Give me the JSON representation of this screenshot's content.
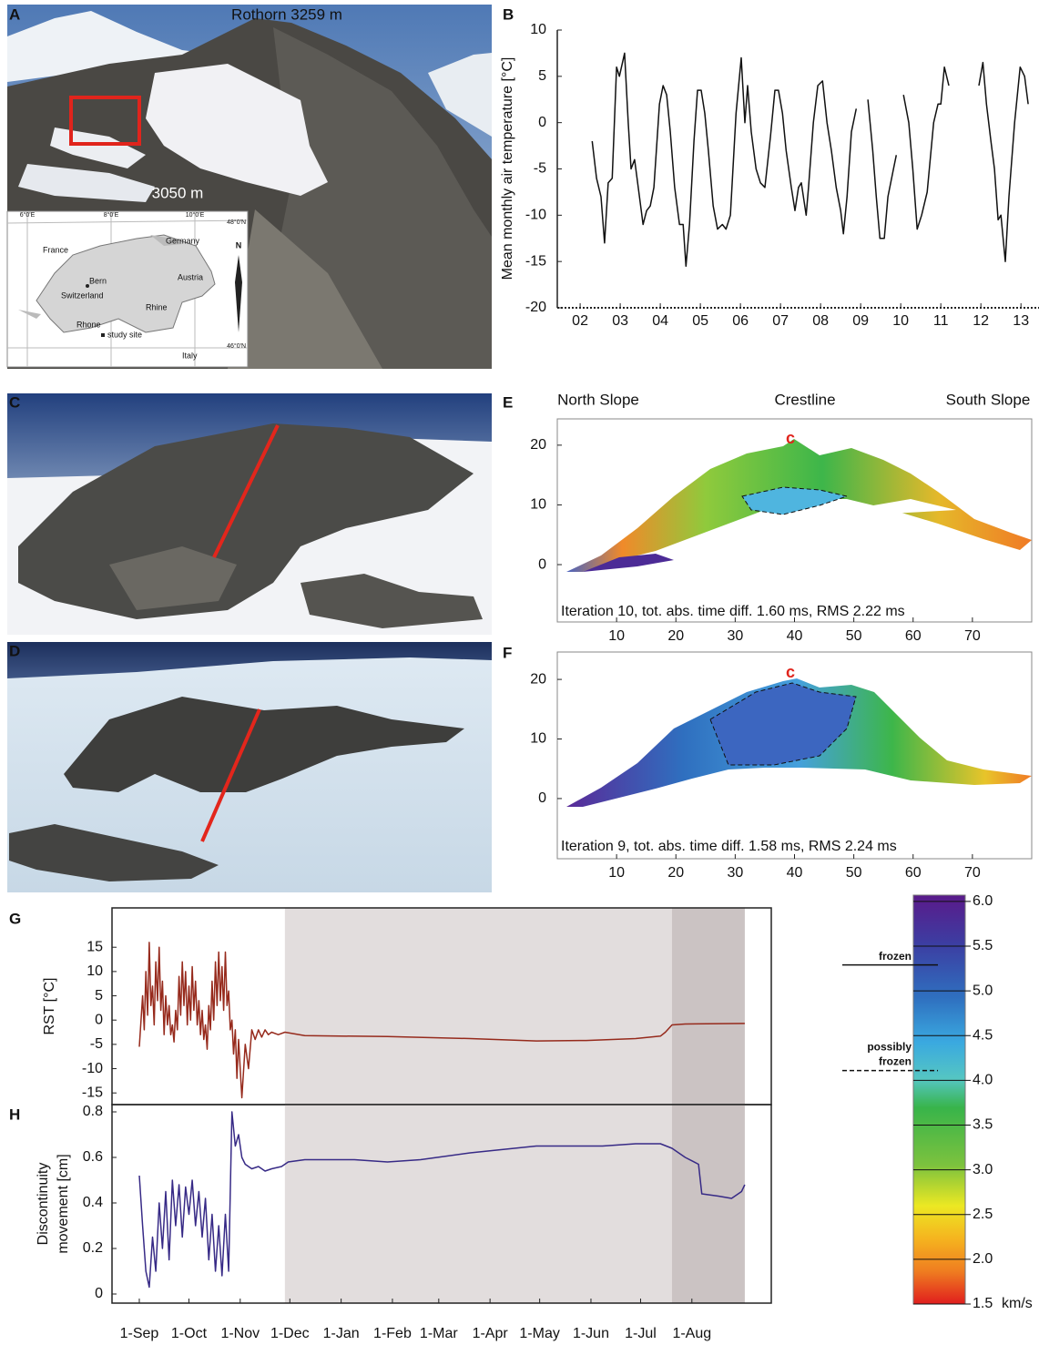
{
  "panel_labels": [
    "A",
    "B",
    "C",
    "D",
    "E",
    "F",
    "G",
    "H"
  ],
  "photo_a": {
    "peak": "Rothorn 3259 m",
    "elevation": "3050 m",
    "map": {
      "labels": [
        "France",
        "Germany",
        "Bern",
        "Austria",
        "Switzerland",
        "Rhone",
        "Rhine",
        "study site",
        "Italy"
      ],
      "north": "N",
      "lon_ticks": [
        "6°0'E",
        "8°0'E",
        "10°0'E"
      ],
      "lat_ticks": [
        "48°0'N",
        "46°0'N"
      ]
    }
  },
  "chart_data": [
    {
      "type": "line",
      "ylabel": "Mean monthly air temperature [°C]",
      "x": [
        2.3,
        2.41,
        2.52,
        2.61,
        2.7,
        2.8,
        2.91,
        2.98,
        3.11,
        3.2,
        3.27,
        3.36,
        3.45,
        3.57,
        3.66,
        3.75,
        3.84,
        3.98,
        4.07,
        4.16,
        4.25,
        4.36,
        4.48,
        4.57,
        4.64,
        4.73,
        4.84,
        4.93,
        5.02,
        5.11,
        5.2,
        5.32,
        5.43,
        5.55,
        5.64,
        5.75,
        5.89,
        6.02,
        6.11,
        6.18,
        6.27,
        6.39,
        6.5,
        6.61,
        6.75,
        6.86,
        6.95,
        7.05,
        7.14,
        7.27,
        7.36,
        7.45,
        7.52,
        7.64,
        7.7,
        7.82,
        7.93,
        8.05,
        8.16,
        8.27,
        8.39,
        8.5,
        8.57,
        8.66,
        8.77,
        8.89,
        9.0,
        9.18,
        9.3,
        9.39,
        9.48,
        9.59,
        9.68,
        9.82,
        9.89,
        9.95,
        10.07,
        10.2,
        10.3,
        10.41,
        10.52,
        10.66,
        10.82,
        10.93,
        11.0,
        11.09,
        11.2,
        11.5,
        11.95,
        12.05,
        12.14,
        12.25,
        12.34,
        12.43,
        12.5,
        12.61,
        12.7,
        12.84,
        12.98,
        13.09,
        13.18
      ],
      "series": [
        {
          "color": "#111111",
          "values": [
            -2,
            -6,
            -8,
            -13,
            -6.5,
            -6,
            6,
            5,
            7.5,
            0,
            -5,
            -4,
            -7,
            -11,
            -9.5,
            -9,
            -7,
            2,
            4,
            3,
            -1,
            -7,
            -11,
            -11,
            -15.5,
            -11,
            -2,
            3.5,
            3.5,
            1,
            -3,
            -9,
            -11.5,
            -11,
            -11.5,
            -10,
            1,
            7,
            0,
            4,
            -1,
            -5,
            -6.5,
            -7,
            -1.5,
            3.5,
            3.5,
            1,
            -3,
            -7,
            -9.5,
            -7,
            -6.5,
            -10,
            -7,
            0,
            4,
            4.5,
            0,
            -3,
            -7,
            -9.5,
            -12,
            -8,
            -1,
            1.5,
            null,
            2.5,
            -3,
            -8,
            -12.5,
            -12.5,
            -8,
            -5,
            -3.5,
            null,
            3,
            0,
            -5,
            -11.5,
            -10,
            -7.5,
            0,
            2,
            2,
            6,
            4,
            null,
            4,
            6.5,
            2,
            -2,
            -5,
            -10.5,
            -10,
            -15,
            -8,
            0,
            6,
            5,
            2
          ]
        }
      ],
      "xlim": [
        1.43,
        13.45
      ],
      "xticks": [
        {
          "value": 2,
          "label": "02"
        },
        {
          "value": 3,
          "label": "03"
        },
        {
          "value": 4,
          "label": "04"
        },
        {
          "value": 5,
          "label": "05"
        },
        {
          "value": 6,
          "label": "06"
        },
        {
          "value": 7,
          "label": "07"
        },
        {
          "value": 8,
          "label": "08"
        },
        {
          "value": 9,
          "label": "09"
        },
        10,
        11,
        12,
        13
      ],
      "ylim": [
        -20,
        10
      ],
      "yticks": [
        -20,
        -15,
        -10,
        -5,
        0,
        5,
        10
      ],
      "frame": false
    },
    {
      "type": "tomogram",
      "header_labels": [
        "North Slope",
        "Crestline",
        "South Slope"
      ],
      "marker": "c",
      "annotation": "Iteration 10, tot. abs. time diff. 1.60 ms, RMS 2.22 ms",
      "xlim": [
        0,
        80
      ],
      "ylim": [
        -9.6,
        24.4
      ],
      "xticks": [
        10,
        20,
        30,
        40,
        50,
        60,
        70
      ],
      "yticks": [
        0,
        10,
        20
      ]
    },
    {
      "type": "tomogram",
      "marker": "c",
      "annotation": "Iteration 9, tot. abs. time diff. 1.58 ms, RMS 2.24 ms",
      "xlim": [
        0,
        80
      ],
      "ylim": [
        -10.1,
        24.6
      ],
      "xticks": [
        10,
        20,
        30,
        40,
        50,
        60,
        70
      ],
      "yticks": [
        0,
        10,
        20
      ]
    },
    {
      "type": "line",
      "ylabel": "RST [°C]",
      "x": [
        0,
        2,
        3,
        4,
        5,
        6,
        7,
        8,
        9,
        10,
        11,
        12,
        13,
        14,
        15,
        16,
        17,
        18,
        19,
        20,
        21,
        22,
        23,
        24,
        25,
        26,
        27,
        28,
        29,
        30,
        31,
        32,
        33,
        34,
        35,
        36,
        37,
        38,
        39,
        40,
        41,
        42,
        43,
        44,
        45,
        46,
        47,
        48,
        49,
        50,
        51,
        52,
        53,
        54,
        55,
        56,
        57,
        58,
        59,
        60,
        62,
        64,
        66,
        68,
        70,
        72,
        74,
        76,
        78,
        80,
        84,
        88,
        100,
        150,
        200,
        240,
        270,
        300,
        315,
        318,
        322,
        330,
        366
      ],
      "series": [
        {
          "color": "#962a1c",
          "values": [
            -5.5,
            5,
            -2,
            10,
            1,
            16,
            3,
            7,
            -1,
            12,
            4,
            15,
            2,
            8,
            -3,
            5,
            -1,
            3,
            -3,
            -1,
            -4.5,
            2,
            -2,
            9,
            1,
            12,
            3,
            10,
            -1,
            7,
            0,
            11,
            2,
            8,
            -1,
            4,
            -3,
            2,
            -4,
            -1,
            -6,
            3,
            -2,
            8,
            0,
            12,
            3,
            14,
            4,
            11,
            2,
            14,
            3,
            6,
            -2,
            0,
            -7,
            -2,
            -12,
            -4,
            -16,
            -5,
            -10,
            -2,
            -4,
            -2,
            -3.5,
            -2,
            -3,
            -2.5,
            -3,
            -2.5,
            -3.2,
            -3.4,
            -3.8,
            -4.3,
            -4.2,
            -3.8,
            -3.3,
            -2.5,
            -1,
            -0.8,
            -0.7
          ]
        }
      ],
      "spans": [
        {
          "from": 88,
          "to": 322,
          "color": "#e2dddd"
        },
        {
          "from": 322,
          "to": 366,
          "color": "#cbc3c3"
        }
      ],
      "xlim": [
        -16.5,
        382
      ],
      "ylim": [
        -17.4,
        23.1
      ],
      "yticks": [
        -15,
        -10,
        -5,
        0,
        5,
        10,
        15
      ],
      "frame": true
    },
    {
      "type": "line",
      "ylabel": [
        "Discontinuity",
        "movement [cm]"
      ],
      "x": [
        0,
        2,
        4,
        6,
        8,
        10,
        12,
        14,
        16,
        18,
        20,
        22,
        24,
        26,
        28,
        30,
        32,
        34,
        36,
        38,
        40,
        42,
        44,
        46,
        48,
        50,
        52,
        54,
        56,
        58,
        60,
        62,
        64,
        68,
        72,
        76,
        80,
        86,
        90,
        100,
        130,
        150,
        170,
        200,
        240,
        280,
        300,
        315,
        322,
        330,
        338,
        340,
        350,
        358,
        364,
        366
      ],
      "series": [
        {
          "color": "#372a86",
          "values": [
            0.52,
            0.3,
            0.1,
            0.03,
            0.25,
            0.1,
            0.4,
            0.2,
            0.45,
            0.15,
            0.5,
            0.3,
            0.48,
            0.25,
            0.47,
            0.35,
            0.5,
            0.3,
            0.45,
            0.25,
            0.42,
            0.15,
            0.35,
            0.1,
            0.3,
            0.08,
            0.35,
            0.1,
            0.8,
            0.65,
            0.7,
            0.6,
            0.57,
            0.55,
            0.56,
            0.54,
            0.55,
            0.56,
            0.58,
            0.59,
            0.59,
            0.58,
            0.59,
            0.62,
            0.65,
            0.65,
            0.66,
            0.66,
            0.64,
            0.6,
            0.57,
            0.44,
            0.43,
            0.42,
            0.45,
            0.48
          ]
        }
      ],
      "spans": [
        {
          "from": 88,
          "to": 322,
          "color": "#e2dddd"
        },
        {
          "from": 322,
          "to": 366,
          "color": "#cbc3c3"
        }
      ],
      "xlim": [
        -16.5,
        382
      ],
      "xticks": [
        {
          "value": 0,
          "label": "1-Sep"
        },
        {
          "value": 30,
          "label": "1-Oct"
        },
        {
          "value": 61,
          "label": "1-Nov"
        },
        {
          "value": 91,
          "label": "1-Dec"
        },
        {
          "value": 122,
          "label": "1-Jan"
        },
        {
          "value": 153,
          "label": "1-Feb"
        },
        {
          "value": 181,
          "label": "1-Mar"
        },
        {
          "value": 212,
          "label": "1-Apr"
        },
        {
          "value": 242,
          "label": "1-May"
        },
        {
          "value": 273,
          "label": "1-Jun"
        },
        {
          "value": 303,
          "label": "1-Jul"
        },
        {
          "value": 334,
          "label": "1-Aug"
        }
      ],
      "ylim": [
        -0.04,
        0.832
      ],
      "yticks": [
        0,
        0.2,
        0.4,
        0.6,
        0.8
      ],
      "frame": true
    },
    {
      "type": "colorbar",
      "unit": "km/s",
      "ylim": [
        1.5,
        6.07
      ],
      "yticks": [
        {
          "value": 6,
          "label": "6.0"
        },
        5.5,
        {
          "value": 5,
          "label": "5.0"
        },
        4.5,
        {
          "value": 4,
          "label": "4.0"
        },
        3.5,
        {
          "value": 3,
          "label": "3.0"
        },
        2.5,
        {
          "value": 2,
          "label": "2.0"
        },
        1.5
      ],
      "thresholds": [
        {
          "label": [
            "frozen"
          ],
          "value": 5.29,
          "style": "solid"
        },
        {
          "label": [
            "possibly",
            "frozen"
          ],
          "value": 4.11,
          "style": "dashed"
        }
      ]
    }
  ]
}
